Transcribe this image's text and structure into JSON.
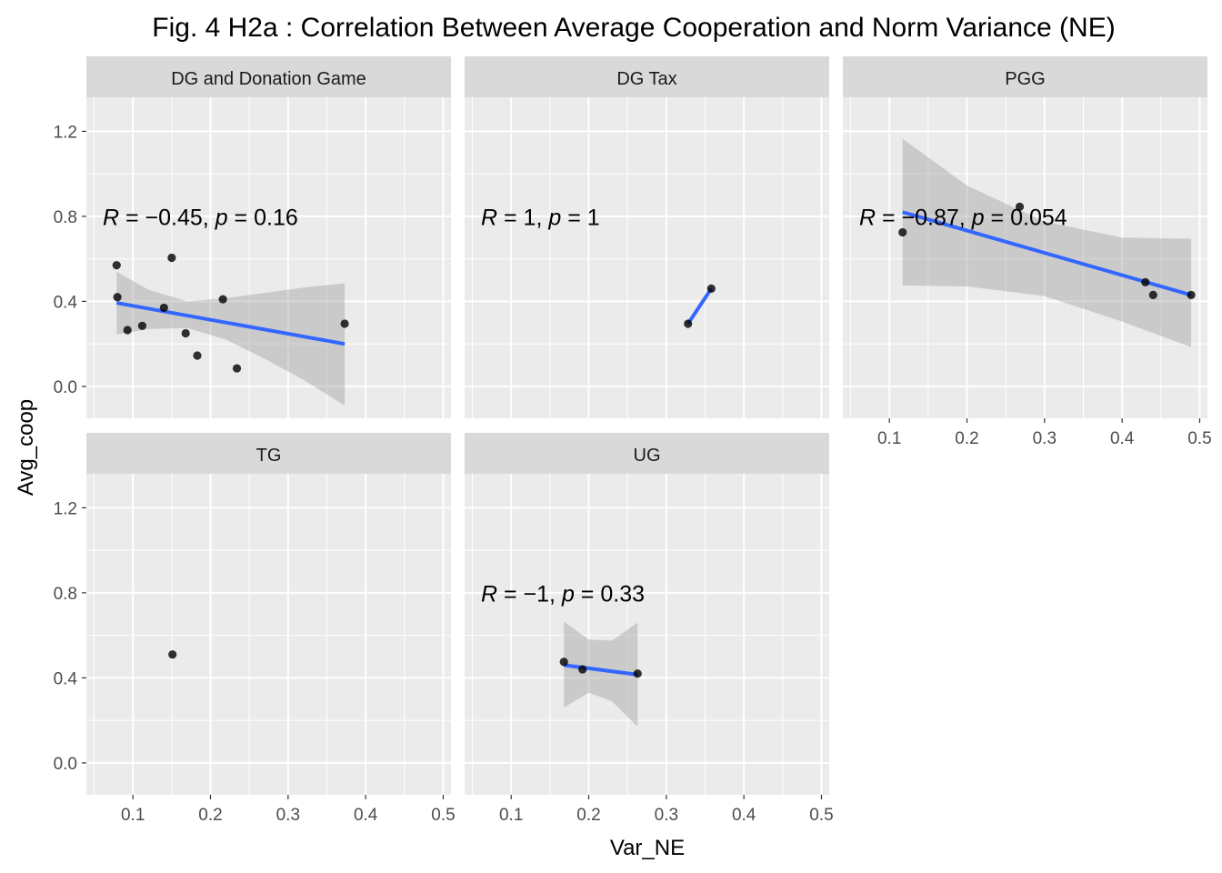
{
  "chart_data": {
    "type": "scatter",
    "title": "Fig. 4 H2a : Correlation Between Average Cooperation and Norm Variance (NE)",
    "xlabel": "Var_NE",
    "ylabel": "Avg_coop",
    "xlim": [
      0.04,
      0.51
    ],
    "ylim": [
      -0.15,
      1.36
    ],
    "x_ticks": [
      0.1,
      0.2,
      0.3,
      0.4,
      0.5
    ],
    "x_tick_labels": [
      "0.1",
      "0.2",
      "0.3",
      "0.4",
      "0.5"
    ],
    "y_ticks": [
      0.0,
      0.4,
      0.8,
      1.2
    ],
    "y_tick_labels": [
      "0.0",
      "0.4",
      "0.8",
      "1.2"
    ],
    "grid": true,
    "point_color": "#000000",
    "line_color": "#3366FF",
    "band_color": "#999999",
    "panel_bg": "#EBEBEB",
    "strip_bg": "#D9D9D9",
    "panels": [
      {
        "name": "DG and Donation Game",
        "stat": {
          "r": "−0.45",
          "p": "0.16"
        },
        "points": [
          [
            0.079,
            0.57
          ],
          [
            0.08,
            0.42
          ],
          [
            0.093,
            0.265
          ],
          [
            0.112,
            0.285
          ],
          [
            0.14,
            0.37
          ],
          [
            0.15,
            0.605
          ],
          [
            0.168,
            0.25
          ],
          [
            0.183,
            0.145
          ],
          [
            0.216,
            0.41
          ],
          [
            0.234,
            0.085
          ],
          [
            0.373,
            0.295
          ]
        ],
        "fit": [
          [
            0.079,
            0.393
          ],
          [
            0.373,
            0.2
          ]
        ],
        "band": [
          [
            0.079,
            0.54,
            0.245
          ],
          [
            0.12,
            0.455,
            0.27
          ],
          [
            0.17,
            0.4,
            0.275
          ],
          [
            0.22,
            0.415,
            0.22
          ],
          [
            0.27,
            0.44,
            0.13
          ],
          [
            0.32,
            0.465,
            0.03
          ],
          [
            0.373,
            0.485,
            -0.09
          ]
        ]
      },
      {
        "name": "DG Tax",
        "stat": {
          "r": "1",
          "p": "1"
        },
        "points": [
          [
            0.328,
            0.295
          ],
          [
            0.358,
            0.46
          ]
        ],
        "fit": [
          [
            0.328,
            0.295
          ],
          [
            0.358,
            0.46
          ]
        ],
        "band": []
      },
      {
        "name": "PGG",
        "stat": {
          "r": "−0.87",
          "p": "0.054"
        },
        "points": [
          [
            0.117,
            0.725
          ],
          [
            0.268,
            0.845
          ],
          [
            0.43,
            0.49
          ],
          [
            0.44,
            0.43
          ],
          [
            0.489,
            0.43
          ]
        ],
        "fit": [
          [
            0.117,
            0.82
          ],
          [
            0.489,
            0.43
          ]
        ],
        "band": [
          [
            0.117,
            1.165,
            0.475
          ],
          [
            0.2,
            0.945,
            0.47
          ],
          [
            0.3,
            0.775,
            0.425
          ],
          [
            0.4,
            0.7,
            0.305
          ],
          [
            0.489,
            0.695,
            0.185
          ]
        ]
      },
      {
        "name": "TG",
        "stat": null,
        "points": [
          [
            0.151,
            0.51
          ]
        ],
        "fit": [],
        "band": []
      },
      {
        "name": "UG",
        "stat": {
          "r": "−1",
          "p": "0.33"
        },
        "points": [
          [
            0.168,
            0.475
          ],
          [
            0.192,
            0.44
          ],
          [
            0.263,
            0.42
          ]
        ],
        "fit": [
          [
            0.168,
            0.46
          ],
          [
            0.263,
            0.415
          ]
        ],
        "band": [
          [
            0.168,
            0.665,
            0.26
          ],
          [
            0.2,
            0.58,
            0.33
          ],
          [
            0.23,
            0.575,
            0.29
          ],
          [
            0.263,
            0.66,
            0.17
          ]
        ]
      }
    ]
  }
}
